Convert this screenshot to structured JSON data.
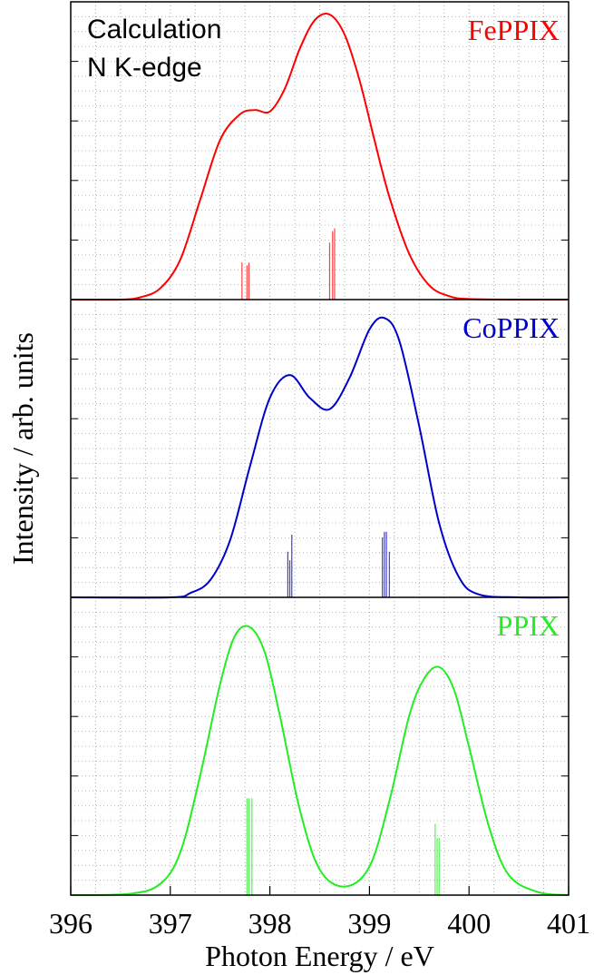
{
  "chart_data": {
    "type": "line",
    "annotation_lines": [
      "Calculation",
      "N K-edge"
    ],
    "xlabel": "Photon Energy / eV",
    "ylabel": "Intensity / arb. units",
    "xlim": [
      396,
      401
    ],
    "x_ticks": [
      "396",
      "397",
      "398",
      "399",
      "400",
      "401"
    ],
    "grid": true,
    "stacked_panels": true,
    "series": [
      {
        "name": "FePPIX",
        "color": "#ff0000",
        "ylim": [
          0,
          1.0
        ],
        "x": [
          396.0,
          396.5,
          396.7,
          396.9,
          397.1,
          397.3,
          397.5,
          397.7,
          397.85,
          398.0,
          398.15,
          398.3,
          398.45,
          398.6,
          398.75,
          398.9,
          399.05,
          399.2,
          399.4,
          399.6,
          399.8,
          400.0,
          400.5,
          401.0
        ],
        "values": [
          0.0,
          0.0,
          0.008,
          0.04,
          0.14,
          0.35,
          0.56,
          0.65,
          0.665,
          0.66,
          0.74,
          0.88,
          0.98,
          1.0,
          0.93,
          0.77,
          0.56,
          0.36,
          0.16,
          0.05,
          0.012,
          0.002,
          0.0,
          0.0
        ]
      },
      {
        "name": "CoPPIX",
        "color": "#0000cc",
        "ylim": [
          0,
          1.0
        ],
        "x": [
          396.0,
          397.0,
          397.2,
          397.4,
          397.6,
          397.8,
          398.0,
          398.2,
          398.4,
          398.6,
          398.8,
          399.0,
          399.15,
          399.3,
          399.5,
          399.7,
          399.9,
          400.1,
          400.5,
          401.0
        ],
        "values": [
          0.0,
          0.0,
          0.015,
          0.06,
          0.2,
          0.46,
          0.7,
          0.78,
          0.7,
          0.66,
          0.77,
          0.94,
          0.98,
          0.9,
          0.6,
          0.26,
          0.07,
          0.01,
          0.0,
          0.0
        ]
      },
      {
        "name": "PPIX",
        "color": "#22ee22",
        "ylim": [
          0,
          1.0
        ],
        "x": [
          396.0,
          396.6,
          396.9,
          397.1,
          397.3,
          397.5,
          397.65,
          397.8,
          397.95,
          398.1,
          398.3,
          398.5,
          398.75,
          399.0,
          399.2,
          399.4,
          399.55,
          399.7,
          399.85,
          400.0,
          400.2,
          400.4,
          400.7,
          401.0
        ],
        "values": [
          0.0,
          0.005,
          0.04,
          0.15,
          0.42,
          0.74,
          0.91,
          0.94,
          0.85,
          0.63,
          0.3,
          0.09,
          0.03,
          0.1,
          0.33,
          0.63,
          0.76,
          0.8,
          0.72,
          0.52,
          0.24,
          0.07,
          0.01,
          0.0
        ]
      }
    ],
    "sticks": [
      {
        "series": "FePPIX",
        "x": [
          397.72,
          397.77,
          397.79,
          398.6,
          398.63,
          398.65
        ],
        "values": [
          0.13,
          0.12,
          0.13,
          0.2,
          0.24,
          0.25
        ]
      },
      {
        "series": "CoPPIX",
        "x": [
          398.18,
          398.2,
          398.22,
          399.13,
          399.15,
          399.17,
          399.2
        ],
        "values": [
          0.16,
          0.13,
          0.22,
          0.21,
          0.23,
          0.23,
          0.16
        ]
      },
      {
        "series": "PPIX",
        "x": [
          397.77,
          397.79,
          397.82,
          399.66,
          399.68,
          399.7
        ],
        "values": [
          0.34,
          0.34,
          0.34,
          0.25,
          0.2,
          0.2
        ]
      }
    ]
  }
}
